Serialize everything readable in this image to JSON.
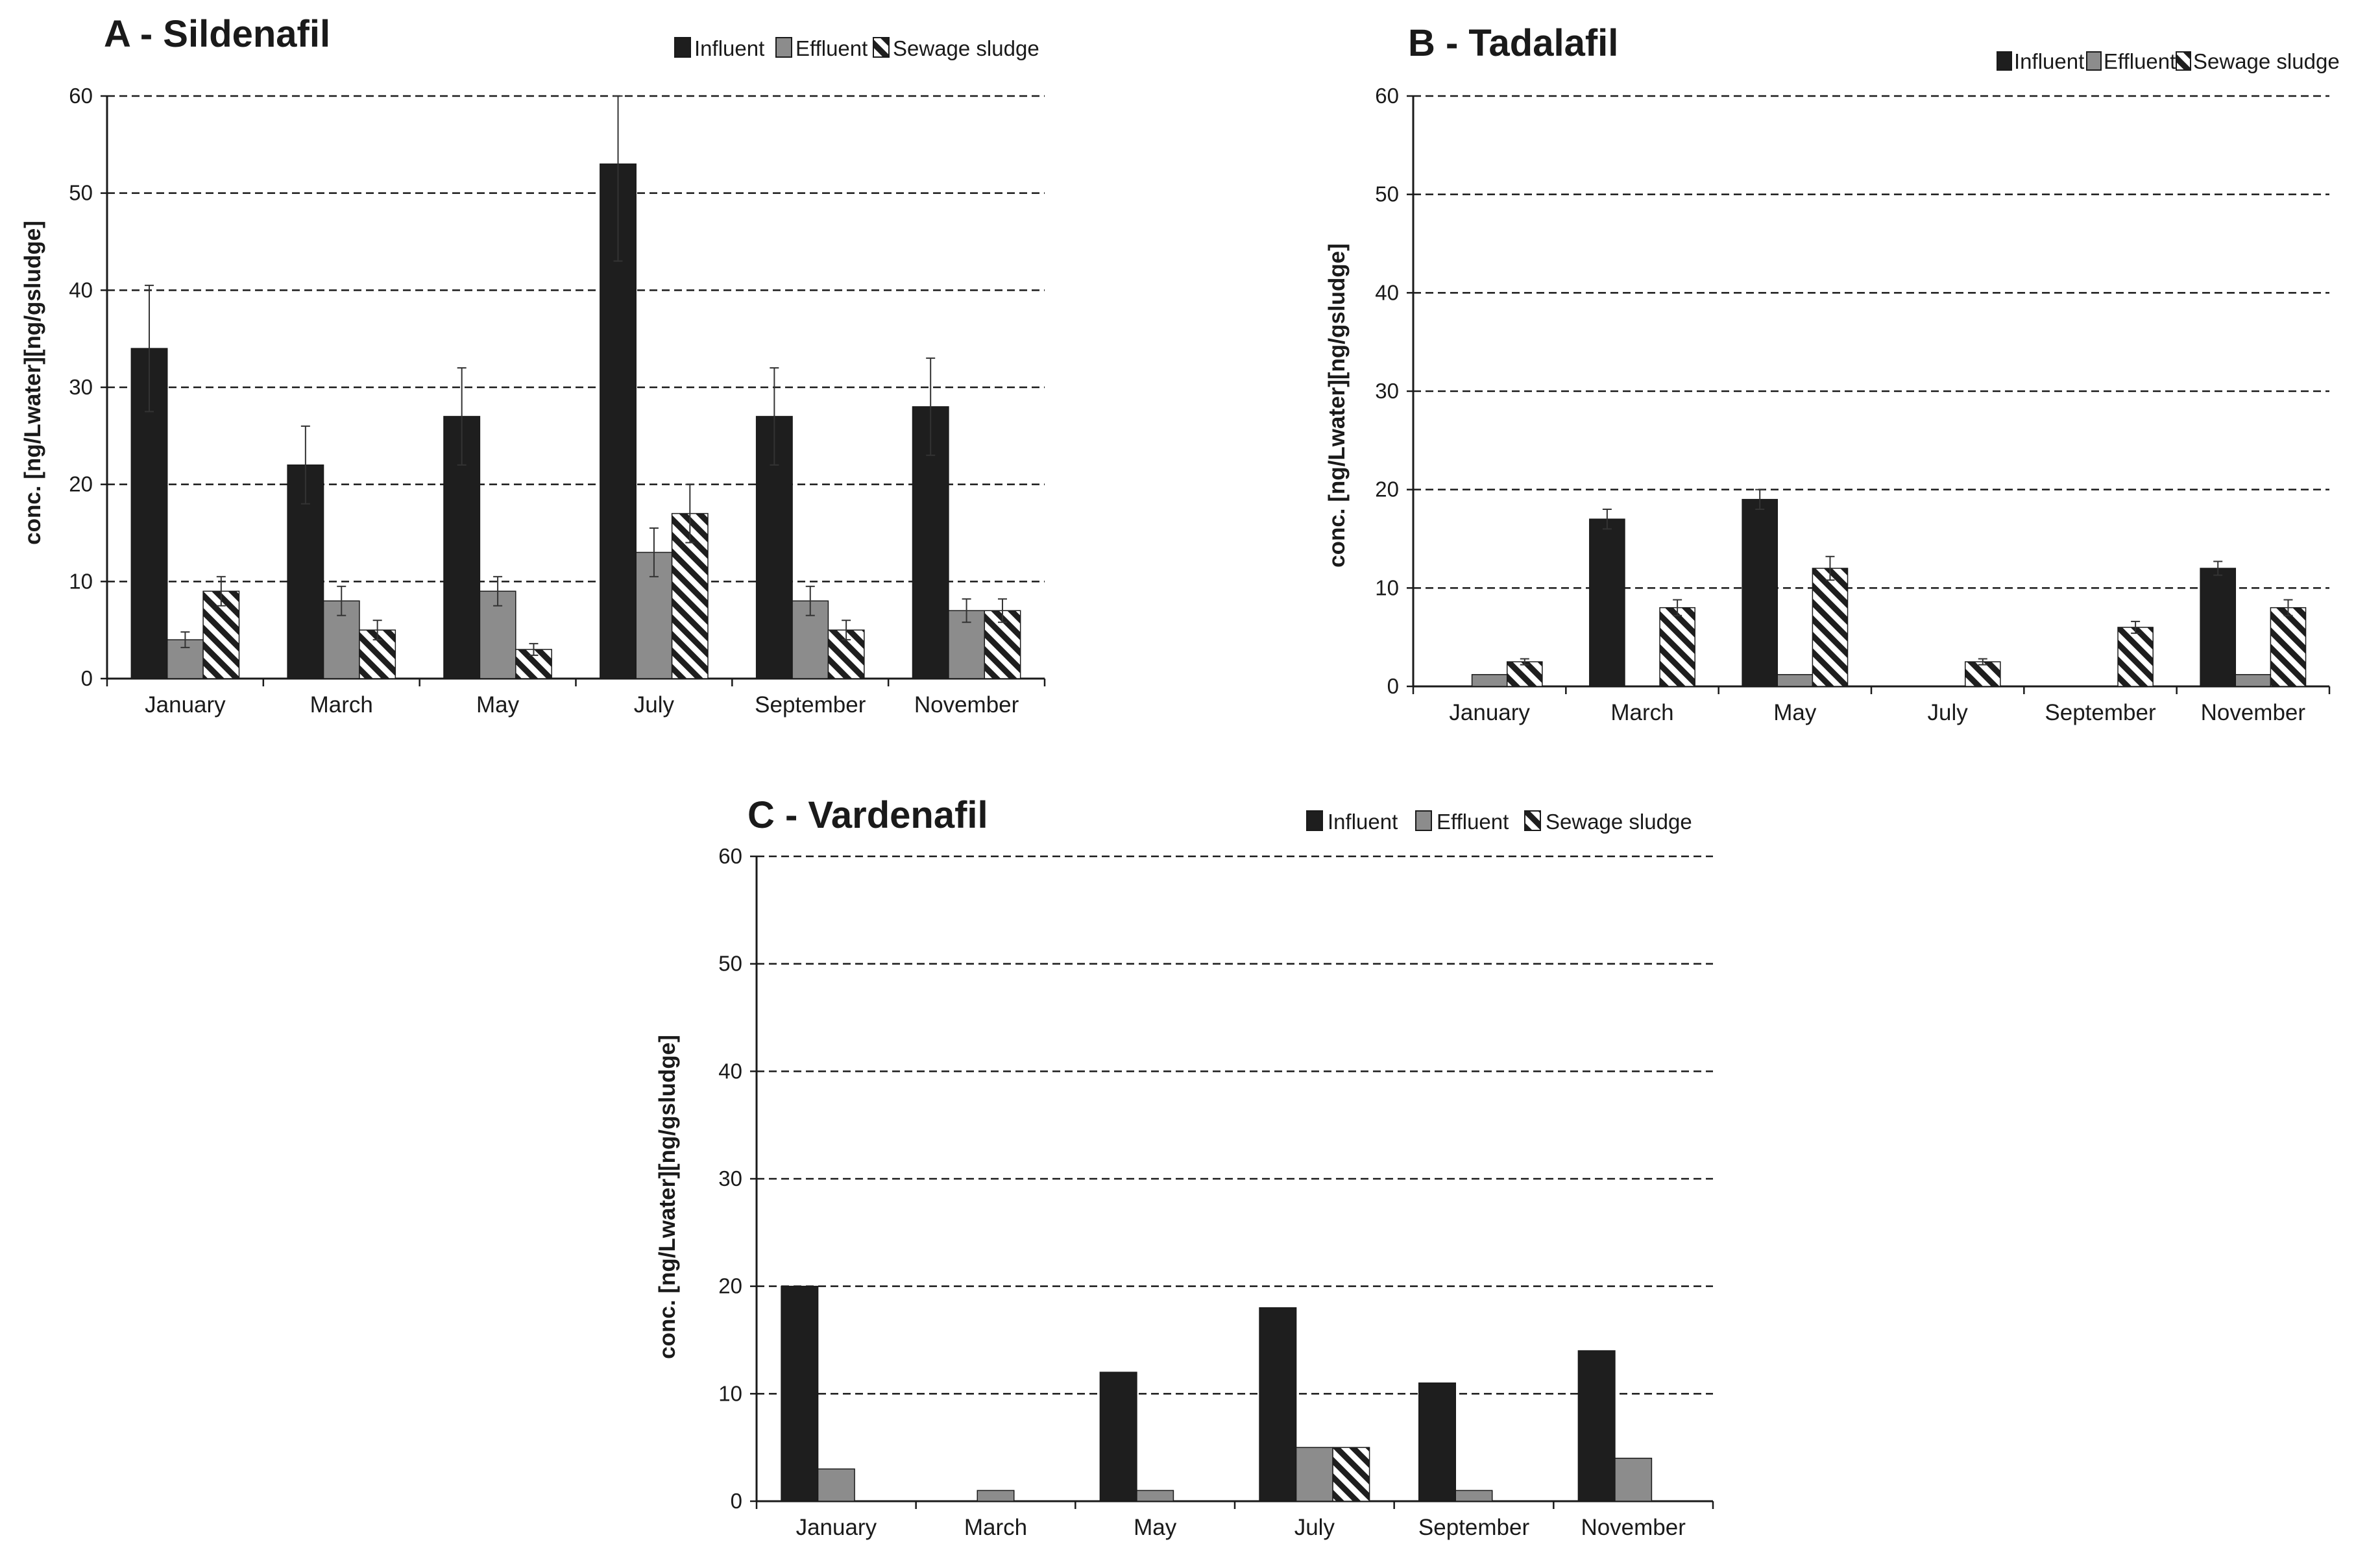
{
  "colors": {
    "influent": "#1e1e1e",
    "effluent": "#8c8c8c",
    "sludge_stripe": "#1e1e1e",
    "sludge_bg": "#ffffff",
    "axis": "#1a1a1a",
    "grid": "#1a1a1a",
    "error_bar": "#333333"
  },
  "chart_data": [
    {
      "type": "bar",
      "title": "A - Sildenafil",
      "ylabel": "conc. [ng/Lwater][ng/gsludge]",
      "xlabel": "",
      "ylim": [
        0,
        60
      ],
      "yticks": [
        0,
        10,
        20,
        30,
        40,
        50,
        60
      ],
      "grid": "horizontal-dashed",
      "legend_position": "top-right",
      "categories": [
        "January",
        "March",
        "May",
        "July",
        "September",
        "November"
      ],
      "series": [
        {
          "name": "Influent",
          "style": "influent",
          "values": [
            34,
            22,
            27,
            53,
            27,
            28
          ],
          "errors": [
            6.5,
            4,
            5,
            10,
            5,
            5
          ]
        },
        {
          "name": "Effluent",
          "style": "effluent",
          "values": [
            4,
            8,
            9,
            13,
            8,
            7
          ],
          "errors": [
            0.8,
            1.5,
            1.5,
            2.5,
            1.5,
            1.2
          ]
        },
        {
          "name": "Sewage sludge",
          "style": "sludge",
          "values": [
            9,
            5,
            3,
            17,
            5,
            7
          ],
          "errors": [
            1.5,
            1,
            0.6,
            3,
            1,
            1.2
          ]
        }
      ]
    },
    {
      "type": "bar",
      "title": "B - Tadalafil",
      "ylabel": "conc. [ng/Lwater][ng/gsludge]",
      "xlabel": "",
      "ylim": [
        0,
        60
      ],
      "yticks": [
        0,
        10,
        20,
        30,
        40,
        50,
        60
      ],
      "grid": "horizontal-dashed",
      "legend_position": "top-right",
      "categories": [
        "January",
        "March",
        "May",
        "July",
        "September",
        "November"
      ],
      "series": [
        {
          "name": "Influent",
          "style": "influent",
          "values": [
            0,
            17,
            19,
            0,
            0,
            12
          ],
          "errors": [
            0,
            1,
            1,
            0,
            0,
            0.7
          ]
        },
        {
          "name": "Effluent",
          "style": "effluent",
          "values": [
            1.2,
            0,
            1.2,
            0,
            0,
            1.2
          ],
          "errors": [
            0,
            0,
            0,
            0,
            0,
            0
          ]
        },
        {
          "name": "Sewage sludge",
          "style": "sludge",
          "values": [
            2.5,
            8,
            12,
            2.5,
            6,
            8
          ],
          "errors": [
            0.3,
            0.8,
            1.2,
            0.3,
            0.6,
            0.8
          ]
        }
      ]
    },
    {
      "type": "bar",
      "title": "C - Vardenafil",
      "ylabel": "conc. [ng/Lwater][ng/gsludge]",
      "xlabel": "",
      "ylim": [
        0,
        60
      ],
      "yticks": [
        0,
        10,
        20,
        30,
        40,
        50,
        60
      ],
      "grid": "horizontal-dashed",
      "legend_position": "top-right",
      "categories": [
        "January",
        "March",
        "May",
        "July",
        "September",
        "November"
      ],
      "series": [
        {
          "name": "Influent",
          "style": "influent",
          "values": [
            20,
            0,
            12,
            18,
            11,
            14
          ],
          "errors": [
            0,
            0,
            0,
            0,
            0,
            0
          ]
        },
        {
          "name": "Effluent",
          "style": "effluent",
          "values": [
            3,
            1,
            1,
            5,
            1,
            4
          ],
          "errors": [
            0,
            0,
            0,
            0,
            0,
            0
          ]
        },
        {
          "name": "Sewage sludge",
          "style": "sludge",
          "values": [
            0,
            0,
            0,
            5,
            0,
            0
          ],
          "errors": [
            0,
            0,
            0,
            0,
            0,
            0
          ]
        }
      ]
    }
  ]
}
